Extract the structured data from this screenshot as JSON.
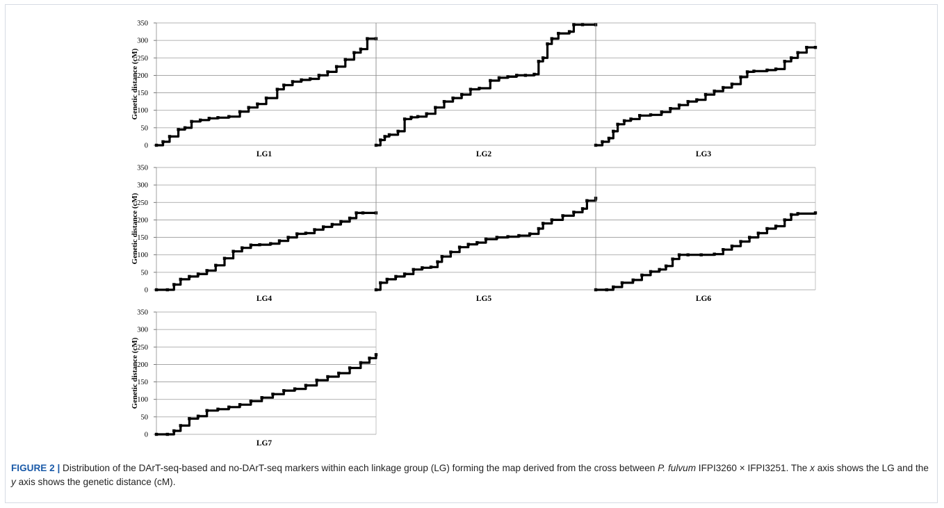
{
  "figure": {
    "caption": {
      "label": "FIGURE 2 |",
      "parts": [
        {
          "text": " Distribution of the DArT-seq-based and no-DArT-seq markers within each linkage group (LG) forming the map derived from the cross between ",
          "italic": false
        },
        {
          "text": "P. fulvum",
          "italic": true
        },
        {
          "text": " IFPI3260 × IFPI3251. The ",
          "italic": false
        },
        {
          "text": "x",
          "italic": true
        },
        {
          "text": " axis shows the LG and the ",
          "italic": false
        },
        {
          "text": "y",
          "italic": true
        },
        {
          "text": " axis shows the genetic distance (cM).",
          "italic": false
        }
      ]
    }
  },
  "chart_data": [
    {
      "type": "line",
      "xlabel": "LG1",
      "ylabel": "Genetic distance (cM)",
      "ylim": [
        0,
        350
      ],
      "yticks": [
        0,
        50,
        100,
        150,
        200,
        250,
        300,
        350
      ],
      "grid": true,
      "series": [
        {
          "x": [
            0,
            0.03,
            0.06,
            0.1,
            0.13,
            0.16,
            0.2,
            0.24,
            0.28,
            0.33,
            0.38,
            0.42,
            0.46,
            0.5,
            0.55,
            0.58,
            0.62,
            0.66,
            0.7,
            0.74,
            0.78,
            0.82,
            0.86,
            0.9,
            0.93,
            0.96,
            1.0
          ],
          "y": [
            0,
            10,
            25,
            45,
            50,
            68,
            72,
            77,
            79,
            82,
            96,
            108,
            118,
            135,
            160,
            172,
            182,
            187,
            190,
            200,
            210,
            225,
            245,
            265,
            275,
            305,
            305
          ]
        }
      ]
    },
    {
      "type": "line",
      "xlabel": "LG2",
      "ylabel": "",
      "ylim": [
        0,
        350
      ],
      "yticks": [
        0,
        50,
        100,
        150,
        200,
        250,
        300,
        350
      ],
      "grid": true,
      "series": [
        {
          "x": [
            0,
            0.02,
            0.04,
            0.06,
            0.1,
            0.13,
            0.16,
            0.19,
            0.23,
            0.27,
            0.31,
            0.35,
            0.39,
            0.43,
            0.47,
            0.52,
            0.56,
            0.6,
            0.64,
            0.68,
            0.72,
            0.74,
            0.76,
            0.78,
            0.8,
            0.83,
            0.88,
            0.9,
            0.94,
            1.0
          ],
          "y": [
            0,
            15,
            25,
            30,
            40,
            75,
            80,
            82,
            90,
            108,
            125,
            135,
            145,
            160,
            163,
            185,
            193,
            196,
            200,
            200,
            203,
            240,
            250,
            290,
            305,
            320,
            325,
            345,
            345,
            345
          ]
        }
      ]
    },
    {
      "type": "line",
      "xlabel": "LG3",
      "ylabel": "",
      "ylim": [
        0,
        350
      ],
      "yticks": [
        0,
        50,
        100,
        150,
        200,
        250,
        300,
        350
      ],
      "grid": true,
      "series": [
        {
          "x": [
            0,
            0.03,
            0.06,
            0.08,
            0.1,
            0.13,
            0.16,
            0.2,
            0.25,
            0.3,
            0.34,
            0.38,
            0.42,
            0.46,
            0.5,
            0.54,
            0.58,
            0.62,
            0.66,
            0.69,
            0.72,
            0.78,
            0.82,
            0.86,
            0.89,
            0.92,
            0.96,
            1.0
          ],
          "y": [
            0,
            10,
            20,
            40,
            60,
            70,
            75,
            85,
            87,
            95,
            105,
            115,
            125,
            130,
            145,
            155,
            165,
            175,
            195,
            210,
            212,
            215,
            218,
            240,
            250,
            265,
            280,
            280
          ]
        }
      ]
    },
    {
      "type": "line",
      "xlabel": "LG4",
      "ylabel": "Genetic distance (cM)",
      "ylim": [
        0,
        350
      ],
      "yticks": [
        0,
        50,
        100,
        150,
        200,
        250,
        300,
        350
      ],
      "grid": true,
      "series": [
        {
          "x": [
            0,
            0.05,
            0.08,
            0.11,
            0.15,
            0.19,
            0.23,
            0.27,
            0.31,
            0.35,
            0.39,
            0.43,
            0.47,
            0.52,
            0.56,
            0.6,
            0.64,
            0.68,
            0.72,
            0.76,
            0.8,
            0.84,
            0.88,
            0.91,
            0.94,
            1.0
          ],
          "y": [
            0,
            0,
            15,
            30,
            38,
            45,
            55,
            70,
            90,
            110,
            120,
            128,
            129,
            132,
            140,
            150,
            160,
            162,
            172,
            180,
            187,
            195,
            205,
            220,
            220,
            220
          ]
        }
      ]
    },
    {
      "type": "line",
      "xlabel": "LG5",
      "ylabel": "",
      "ylim": [
        0,
        350
      ],
      "yticks": [
        0,
        50,
        100,
        150,
        200,
        250,
        300,
        350
      ],
      "grid": true,
      "series": [
        {
          "x": [
            0,
            0.02,
            0.05,
            0.09,
            0.13,
            0.17,
            0.21,
            0.25,
            0.28,
            0.3,
            0.34,
            0.38,
            0.42,
            0.46,
            0.5,
            0.55,
            0.6,
            0.65,
            0.7,
            0.74,
            0.76,
            0.8,
            0.85,
            0.9,
            0.94,
            0.96,
            1.0
          ],
          "y": [
            0,
            20,
            30,
            38,
            45,
            58,
            63,
            65,
            80,
            95,
            108,
            122,
            130,
            135,
            145,
            150,
            152,
            155,
            160,
            175,
            190,
            200,
            212,
            222,
            232,
            255,
            262
          ]
        }
      ]
    },
    {
      "type": "line",
      "xlabel": "LG6",
      "ylabel": "",
      "ylim": [
        0,
        350
      ],
      "yticks": [
        0,
        50,
        100,
        150,
        200,
        250,
        300,
        350
      ],
      "grid": true,
      "series": [
        {
          "x": [
            0,
            0.05,
            0.08,
            0.12,
            0.17,
            0.21,
            0.25,
            0.29,
            0.32,
            0.35,
            0.38,
            0.42,
            0.48,
            0.54,
            0.58,
            0.62,
            0.66,
            0.7,
            0.74,
            0.78,
            0.82,
            0.86,
            0.89,
            0.92,
            1.0
          ],
          "y": [
            0,
            0,
            8,
            20,
            28,
            42,
            52,
            58,
            68,
            88,
            100,
            100,
            100,
            102,
            115,
            125,
            138,
            150,
            162,
            175,
            182,
            200,
            215,
            218,
            220
          ]
        }
      ]
    },
    {
      "type": "line",
      "xlabel": "LG7",
      "ylabel": "Genetic distance (cM)",
      "ylim": [
        0,
        350
      ],
      "yticks": [
        0,
        50,
        100,
        150,
        200,
        250,
        300,
        350
      ],
      "grid": true,
      "series": [
        {
          "x": [
            0,
            0.05,
            0.08,
            0.11,
            0.15,
            0.19,
            0.23,
            0.28,
            0.33,
            0.38,
            0.43,
            0.48,
            0.53,
            0.58,
            0.63,
            0.68,
            0.73,
            0.78,
            0.83,
            0.88,
            0.93,
            0.97,
            1.0
          ],
          "y": [
            0,
            0,
            10,
            25,
            45,
            52,
            68,
            72,
            78,
            85,
            95,
            105,
            115,
            125,
            130,
            140,
            155,
            165,
            175,
            190,
            205,
            218,
            228
          ]
        }
      ]
    }
  ]
}
